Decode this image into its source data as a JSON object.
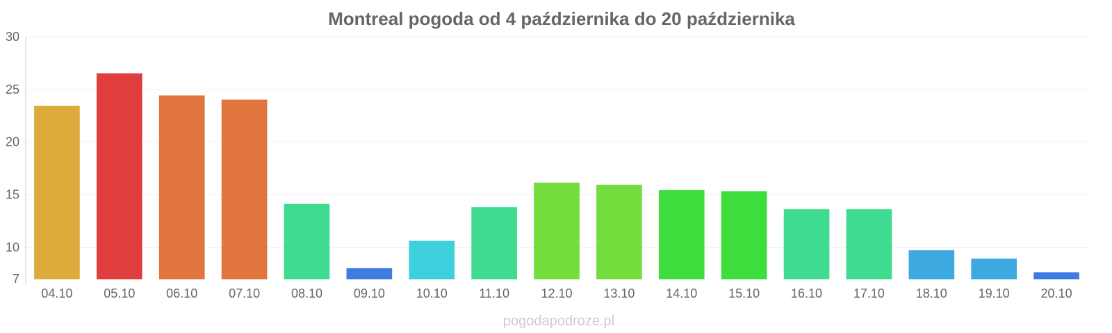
{
  "chart_data": {
    "type": "bar",
    "title": "Montreal pogoda od 4 października do 20 października",
    "xlabel": "",
    "ylabel": "",
    "categories": [
      "04.10",
      "05.10",
      "06.10",
      "07.10",
      "08.10",
      "09.10",
      "10.10",
      "11.10",
      "12.10",
      "13.10",
      "14.10",
      "15.10",
      "16.10",
      "17.10",
      "18.10",
      "19.10",
      "20.10"
    ],
    "values": [
      23.4,
      26.5,
      24.4,
      24.0,
      14.1,
      8.0,
      10.6,
      13.8,
      16.1,
      15.9,
      15.4,
      15.3,
      13.6,
      13.6,
      9.7,
      8.9,
      7.6
    ],
    "colors": [
      "#dba631",
      "#de3434",
      "#de6e34",
      "#de6e34",
      "#34d98a",
      "#3475de",
      "#34cddb",
      "#34d98a",
      "#6ddb34",
      "#6ddb34",
      "#34db34",
      "#34db34",
      "#34d98a",
      "#34d98a",
      "#34a4de",
      "#34a4de",
      "#3475de"
    ],
    "y_ticks": [
      7,
      10,
      15,
      20,
      25,
      30
    ],
    "ylim": [
      7,
      30
    ],
    "grid": true
  },
  "watermark": "pogodapodroze.pl"
}
